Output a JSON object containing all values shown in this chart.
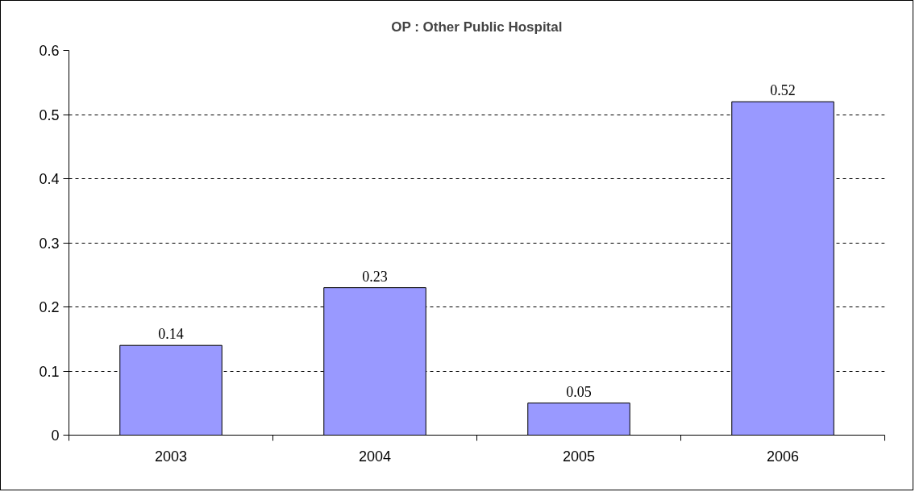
{
  "chart_data": {
    "type": "bar",
    "title": "OP : Other Public Hospital",
    "categories": [
      "2003",
      "2004",
      "2005",
      "2006"
    ],
    "values": [
      0.14,
      0.23,
      0.05,
      0.52
    ],
    "color": "#9999ff",
    "ylim": [
      0,
      0.6
    ],
    "yticks": [
      0,
      0.1,
      0.2,
      0.3,
      0.4,
      0.5,
      0.6
    ],
    "grid": "y",
    "data_labels": true
  }
}
